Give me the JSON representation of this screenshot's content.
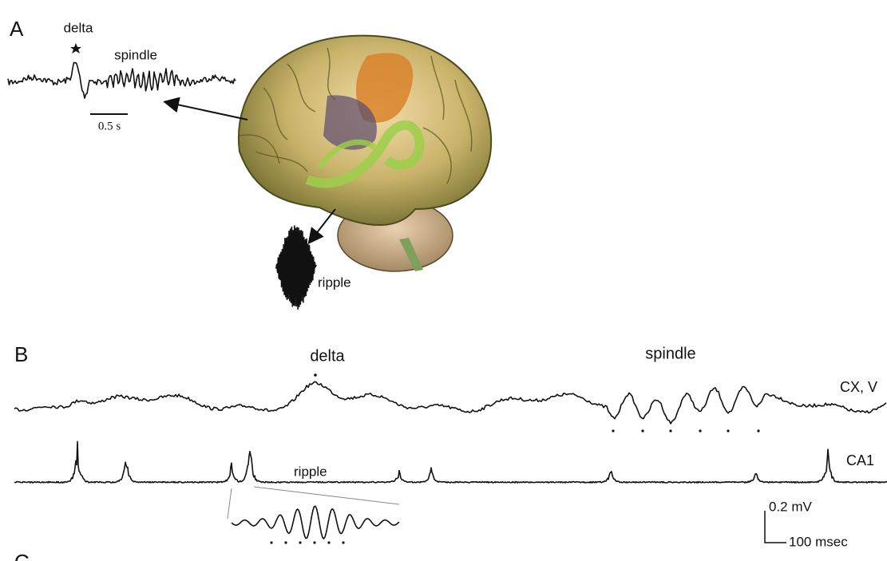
{
  "panel_a": {
    "label": "A",
    "delta": "delta",
    "spindle": "spindle",
    "scale": "0.5 s",
    "ripple": "ripple"
  },
  "panel_b": {
    "label": "B",
    "delta": "delta",
    "spindle": "spindle",
    "cx_trace": "CX, V",
    "ca1_trace": "CA1",
    "ripple": "ripple",
    "scale_voltage": "0.2 mV",
    "scale_time": "100 msec"
  },
  "panel_c": {
    "label": "C"
  }
}
